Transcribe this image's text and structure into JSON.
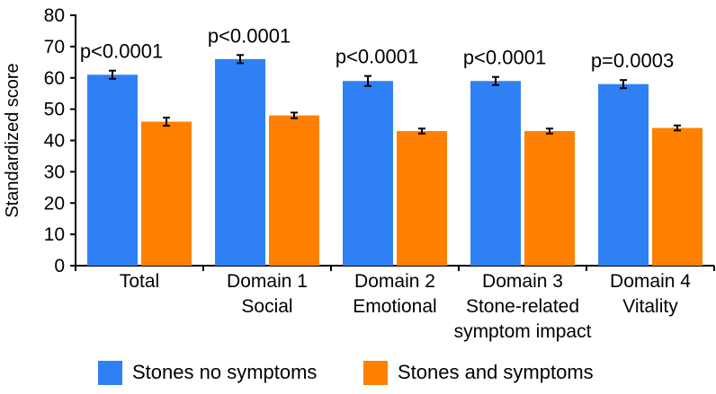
{
  "chart_data": {
    "type": "bar",
    "ylabel": "Standardized score",
    "xlabel": "",
    "ylim": [
      0,
      80
    ],
    "yticks": [
      0,
      10,
      20,
      30,
      40,
      50,
      60,
      70,
      80
    ],
    "categories": [
      [
        "Total"
      ],
      [
        "Domain 1",
        "Social"
      ],
      [
        "Domain 2",
        "Emotional"
      ],
      [
        "Domain 3",
        "Stone-related",
        "symptom impact"
      ],
      [
        "Domain 4",
        "Vitality"
      ]
    ],
    "series": [
      {
        "name": "Stones no symptoms",
        "color": "#2F80F5",
        "values": [
          61,
          66,
          59,
          59,
          58
        ],
        "errors": [
          1.3,
          1.3,
          1.6,
          1.3,
          1.3
        ]
      },
      {
        "name": "Stones and symptoms",
        "color": "#FF8000",
        "values": [
          46,
          48,
          43,
          43,
          44
        ],
        "errors": [
          1.3,
          0.9,
          0.8,
          0.8,
          0.8
        ]
      }
    ],
    "annotations": [
      "p<0.0001",
      "p<0.0001",
      "p<0.0001",
      "p<0.0001",
      "p=0.0003"
    ],
    "legend_position": "bottom"
  },
  "legend": {
    "item1": {
      "label": "Stones no symptoms",
      "color": "#2F80F5"
    },
    "item2": {
      "label": "Stones and symptoms",
      "color": "#FF8000"
    }
  }
}
